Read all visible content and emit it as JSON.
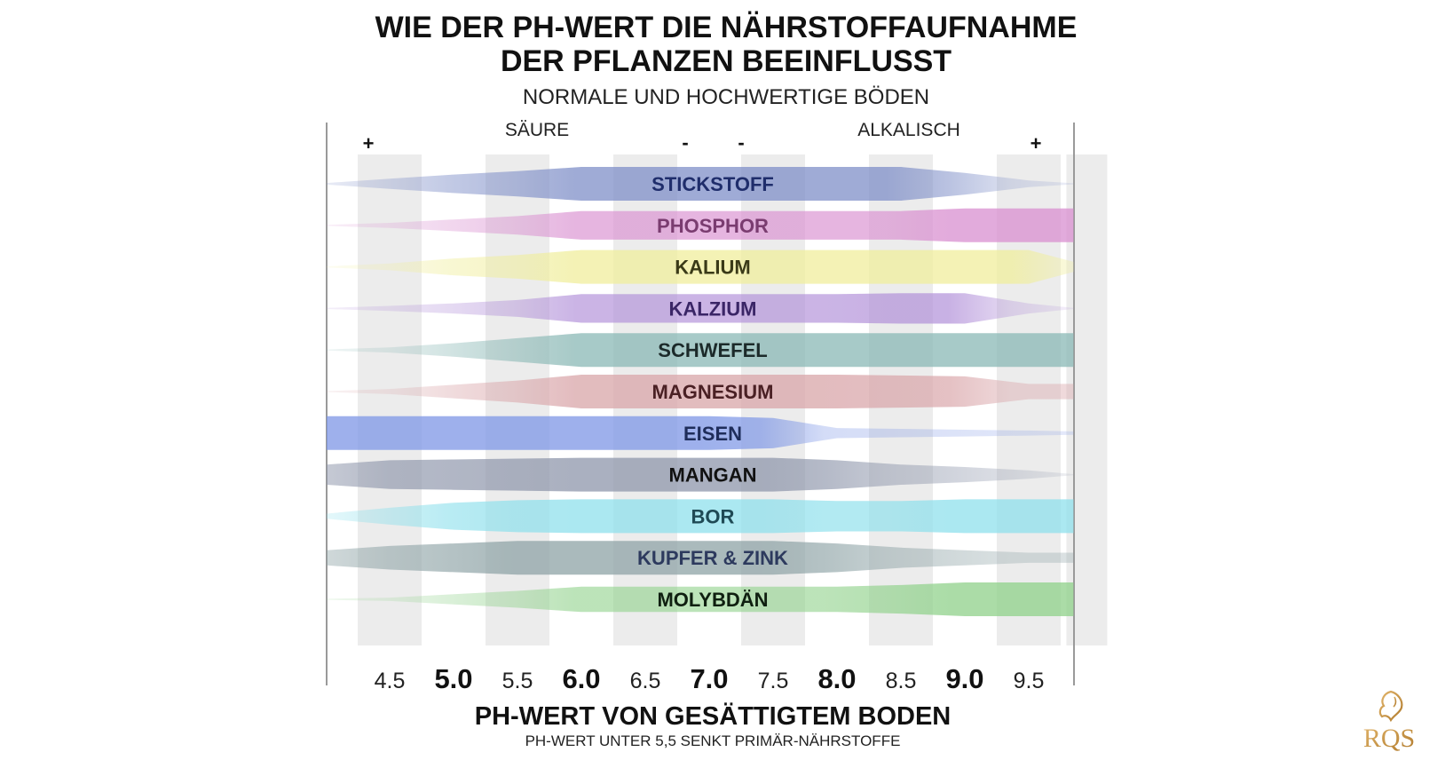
{
  "chart_data": {
    "type": "area",
    "title_line1": "WIE DER PH-WERT DIE NÄHRSTOFFAUFNAHME",
    "title_line2": "DER PFLANZEN BEEINFLUSST",
    "subtitle": "NORMALE UND HOCHWERTIGE BÖDEN",
    "zone_acid": "SÄURE",
    "zone_alkaline": "ALKALISCH",
    "marker_left": "+",
    "marker_mid_left": "-",
    "marker_mid_right": "-",
    "marker_right": "+",
    "xlabel": "PH-WERT VON GESÄTTIGTEM BODEN",
    "xnote": "PH-WERT UNTER 5,5 SENKT PRIMÄR-NÄHRSTOFFE",
    "xlim": [
      4.0,
      9.85
    ],
    "x_ticks": [
      {
        "value": 4.5,
        "label": "4.5",
        "major": false
      },
      {
        "value": 5.0,
        "label": "5.0",
        "major": true
      },
      {
        "value": 5.5,
        "label": "5.5",
        "major": false
      },
      {
        "value": 6.0,
        "label": "6.0",
        "major": true
      },
      {
        "value": 6.5,
        "label": "6.5",
        "major": false
      },
      {
        "value": 7.0,
        "label": "7.0",
        "major": true
      },
      {
        "value": 7.5,
        "label": "7.5",
        "major": false
      },
      {
        "value": 8.0,
        "label": "8.0",
        "major": true
      },
      {
        "value": 8.5,
        "label": "8.5",
        "major": false
      },
      {
        "value": 9.0,
        "label": "9.0",
        "major": true
      },
      {
        "value": 9.5,
        "label": "9.5",
        "major": false
      }
    ],
    "x_points": [
      4.0,
      4.5,
      5.0,
      5.5,
      6.0,
      6.5,
      7.0,
      7.5,
      8.0,
      8.5,
      9.0,
      9.5,
      9.85
    ],
    "series": [
      {
        "name": "STICKSTOFF",
        "color": "#7f8fc8",
        "text_color": "#1f2d6b",
        "availability": [
          0.05,
          0.3,
          0.55,
          0.75,
          1,
          1,
          1,
          1,
          1,
          1,
          0.65,
          0.2,
          0
        ]
      },
      {
        "name": "PHOSPHOR",
        "color": "#d98fd0",
        "text_color": "#7a3c70",
        "availability": [
          0,
          0.15,
          0.35,
          0.55,
          0.85,
          0.85,
          0.85,
          0.85,
          0.85,
          0.85,
          1,
          1,
          1
        ]
      },
      {
        "name": "KALIUM",
        "color": "#f0ee9c",
        "text_color": "#3a3a18",
        "availability": [
          0,
          0.2,
          0.5,
          0.7,
          1,
          1,
          1,
          1,
          1,
          1,
          1,
          1,
          0.3
        ]
      },
      {
        "name": "KALZIUM",
        "color": "#b08ed8",
        "text_color": "#3a2566",
        "availability": [
          0,
          0.15,
          0.3,
          0.5,
          0.85,
          0.85,
          0.85,
          0.85,
          0.85,
          0.9,
          0.9,
          0.3,
          0
        ]
      },
      {
        "name": "SCHWEFEL",
        "color": "#8ab8b5",
        "text_color": "#1c2a2a",
        "availability": [
          0,
          0.15,
          0.4,
          0.7,
          1,
          1,
          1,
          1,
          1,
          1,
          1,
          1,
          1
        ]
      },
      {
        "name": "MAGNESIUM",
        "color": "#d9a5a9",
        "text_color": "#4a2024",
        "availability": [
          0,
          0.15,
          0.4,
          0.65,
          1,
          1,
          1,
          1,
          1,
          0.95,
          0.9,
          0.45,
          0.45
        ]
      },
      {
        "name": "EISEN",
        "color": "#7d96e6",
        "text_color": "#1f2d5a",
        "availability": [
          1,
          1,
          1,
          1,
          1,
          1,
          1,
          0.9,
          0.3,
          0.25,
          0.2,
          0.15,
          0.1
        ]
      },
      {
        "name": "MANGAN",
        "color": "#8e96ab",
        "text_color": "#111111",
        "availability": [
          0.6,
          0.85,
          0.9,
          0.95,
          1,
          1,
          1,
          1,
          0.85,
          0.6,
          0.45,
          0.25,
          0
        ]
      },
      {
        "name": "BOR",
        "color": "#8fe0ec",
        "text_color": "#1f4a55",
        "availability": [
          0.15,
          0.5,
          0.8,
          0.95,
          1,
          1,
          1,
          1,
          0.9,
          0.9,
          1,
          1,
          1
        ]
      },
      {
        "name": "KUPFER & ZINK",
        "color": "#8ea3a6",
        "text_color": "#2d3a5e",
        "availability": [
          0.45,
          0.7,
          0.85,
          1,
          1,
          1,
          1,
          1,
          0.85,
          0.6,
          0.45,
          0.3,
          0.3
        ]
      },
      {
        "name": "MOLYBDÄN",
        "color": "#8fd18a",
        "text_color": "#0f1f10",
        "availability": [
          0,
          0.1,
          0.3,
          0.5,
          0.75,
          0.75,
          0.75,
          0.75,
          0.75,
          0.85,
          1,
          1,
          1
        ]
      }
    ],
    "logo_text": "RQS"
  }
}
